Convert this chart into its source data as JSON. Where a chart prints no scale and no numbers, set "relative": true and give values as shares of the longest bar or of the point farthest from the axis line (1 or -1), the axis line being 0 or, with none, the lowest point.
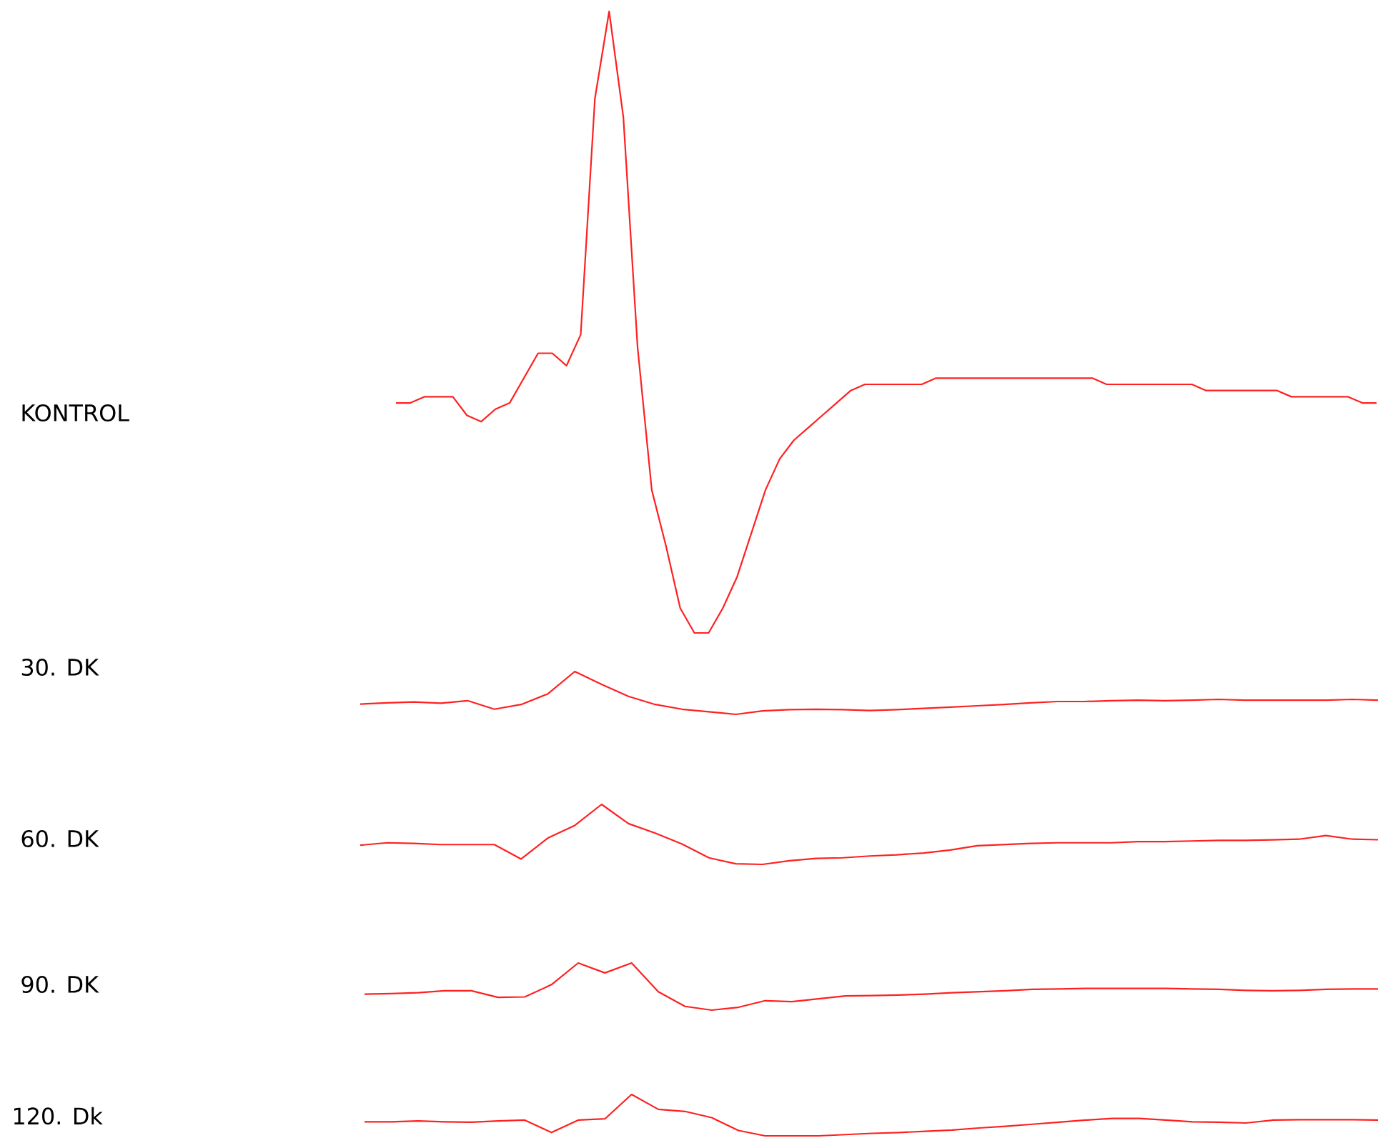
{
  "chart_data": [
    {
      "type": "line",
      "relative": true,
      "categories": [
        null,
        null,
        null,
        null,
        null,
        null,
        null,
        null,
        null,
        null,
        null,
        null,
        null,
        null,
        null,
        null,
        null,
        null,
        null,
        null,
        null,
        null,
        null,
        null,
        null,
        null,
        null,
        null,
        null,
        null,
        null,
        null,
        null,
        null,
        null,
        null,
        null,
        null,
        null,
        null,
        null,
        null,
        null,
        null,
        null,
        null,
        null,
        null,
        null,
        null,
        null,
        null,
        null,
        null,
        null,
        null,
        null,
        null,
        null,
        null,
        null,
        null,
        null,
        null,
        null,
        null,
        null,
        null,
        null,
        null
      ],
      "series": [
        {
          "name": "KONTROL",
          "color": "#ff2020",
          "values": [
            0.37,
            0.37,
            0.38,
            0.38,
            0.38,
            0.35,
            0.34,
            0.36,
            0.37,
            0.41,
            0.45,
            0.45,
            0.43,
            0.48,
            0.86,
            1,
            0.83,
            0.46,
            0.23,
            0.14,
            0.04,
            0,
            0,
            0.04,
            0.09,
            0.16,
            0.23,
            0.28,
            0.31,
            0.33,
            0.35,
            0.37,
            0.39,
            0.4,
            0.4,
            0.4,
            0.4,
            0.4,
            0.41,
            0.41,
            0.41,
            0.41,
            0.41,
            0.41,
            0.41,
            0.41,
            0.41,
            0.41,
            0.41,
            0.41,
            0.4,
            0.4,
            0.4,
            0.4,
            0.4,
            0.4,
            0.4,
            0.39,
            0.39,
            0.39,
            0.39,
            0.39,
            0.39,
            0.38,
            0.38,
            0.38,
            0.38,
            0.38,
            0.37,
            0.37
          ]
        }
      ]
    },
    {
      "type": "line",
      "relative": true,
      "categories": [
        null,
        null,
        null,
        null,
        null,
        null,
        null,
        null,
        null,
        null,
        null,
        null,
        null,
        null,
        null,
        null,
        null,
        null,
        null,
        null,
        null,
        null,
        null,
        null,
        null,
        null,
        null,
        null,
        null,
        null,
        null,
        null,
        null,
        null,
        null,
        null,
        null,
        null,
        null
      ],
      "series": [
        {
          "name": "30. DK",
          "color": "#ff2020",
          "values": [
            0.24,
            0.27,
            0.29,
            0.26,
            0.32,
            0.12,
            0.23,
            0.48,
            1,
            0.7,
            0.42,
            0.23,
            0.12,
            0.06,
            0,
            0.08,
            0.11,
            0.12,
            0.11,
            0.09,
            0.11,
            0.14,
            0.17,
            0.2,
            0.23,
            0.27,
            0.3,
            0.3,
            0.32,
            0.33,
            0.32,
            0.33,
            0.35,
            0.33,
            0.33,
            0.33,
            0.33,
            0.35,
            0.33
          ]
        }
      ]
    },
    {
      "type": "line",
      "relative": true,
      "categories": [
        null,
        null,
        null,
        null,
        null,
        null,
        null,
        null,
        null,
        null,
        null,
        null,
        null,
        null,
        null,
        null,
        null,
        null,
        null,
        null,
        null,
        null,
        null,
        null,
        null,
        null,
        null,
        null,
        null,
        null,
        null,
        null,
        null,
        null,
        null,
        null,
        null,
        null,
        null
      ],
      "series": [
        {
          "name": "60. DK",
          "color": "#ff2020",
          "values": [
            0.32,
            0.36,
            0.35,
            0.33,
            0.33,
            0.33,
            0.09,
            0.44,
            0.65,
            1,
            0.68,
            0.52,
            0.34,
            0.11,
            0.01,
            0,
            0.06,
            0.1,
            0.11,
            0.14,
            0.16,
            0.19,
            0.24,
            0.31,
            0.33,
            0.35,
            0.36,
            0.36,
            0.36,
            0.38,
            0.38,
            0.39,
            0.4,
            0.4,
            0.41,
            0.42,
            0.48,
            0.42,
            0.41
          ]
        }
      ]
    },
    {
      "type": "line",
      "relative": true,
      "categories": [
        null,
        null,
        null,
        null,
        null,
        null,
        null,
        null,
        null,
        null,
        null,
        null,
        null,
        null,
        null,
        null,
        null,
        null,
        null,
        null,
        null,
        null,
        null,
        null,
        null,
        null,
        null,
        null,
        null,
        null,
        null,
        null,
        null,
        null,
        null,
        null,
        null,
        null,
        null
      ],
      "series": [
        {
          "name": "90. DK",
          "color": "#ff2020",
          "values": [
            0.34,
            0.35,
            0.37,
            0.41,
            0.41,
            0.27,
            0.28,
            0.54,
            1,
            0.79,
            1,
            0.39,
            0.08,
            0,
            0.06,
            0.2,
            0.18,
            0.24,
            0.3,
            0.31,
            0.32,
            0.34,
            0.37,
            0.39,
            0.41,
            0.44,
            0.45,
            0.46,
            0.46,
            0.46,
            0.46,
            0.45,
            0.44,
            0.42,
            0.41,
            0.42,
            0.44,
            0.45,
            0.45
          ]
        }
      ]
    },
    {
      "type": "line",
      "relative": true,
      "categories": [
        null,
        null,
        null,
        null,
        null,
        null,
        null,
        null,
        null,
        null,
        null,
        null,
        null,
        null,
        null,
        null,
        null,
        null,
        null,
        null,
        null,
        null,
        null,
        null,
        null,
        null,
        null,
        null,
        null,
        null,
        null,
        null,
        null,
        null,
        null,
        null,
        null,
        null,
        null
      ],
      "series": [
        {
          "name": "120. Dk",
          "color": "#ff2020",
          "values": [
            0.34,
            0.34,
            0.36,
            0.34,
            0.33,
            0.36,
            0.38,
            0.08,
            0.38,
            0.41,
            1,
            0.64,
            0.59,
            0.44,
            0.13,
            0,
            0,
            0,
            0.03,
            0.06,
            0.08,
            0.11,
            0.14,
            0.19,
            0.23,
            0.28,
            0.33,
            0.38,
            0.42,
            0.42,
            0.38,
            0.34,
            0.33,
            0.31,
            0.38,
            0.39,
            0.39,
            0.39,
            0.38
          ]
        }
      ]
    }
  ]
}
